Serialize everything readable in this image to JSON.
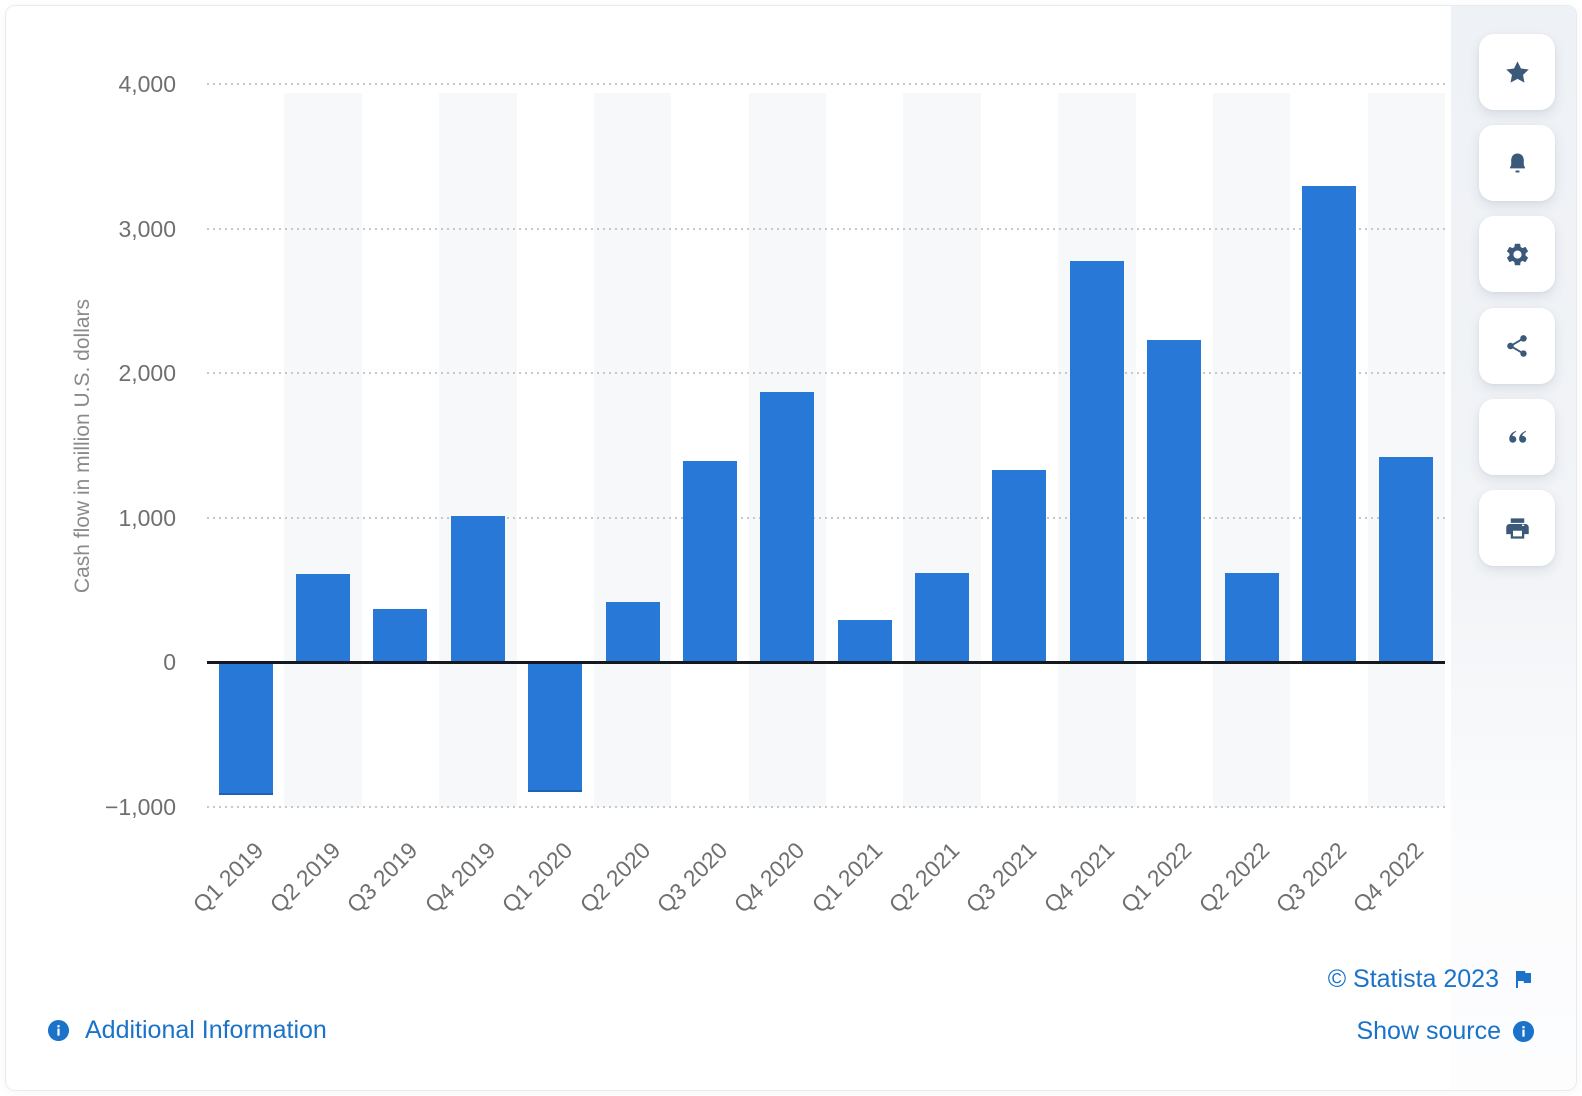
{
  "chart_data": {
    "type": "bar",
    "title": "",
    "categories": [
      "Q1 2019",
      "Q2 2019",
      "Q3 2019",
      "Q4 2019",
      "Q1 2020",
      "Q2 2020",
      "Q3 2020",
      "Q4 2020",
      "Q1 2021",
      "Q2 2021",
      "Q3 2021",
      "Q4 2021",
      "Q1 2022",
      "Q2 2022",
      "Q3 2022",
      "Q4 2022"
    ],
    "values": [
      -920,
      614,
      371,
      1013,
      -895,
      418,
      1395,
      1873,
      293,
      619,
      1328,
      2775,
      2228,
      621,
      3297,
      1420
    ],
    "xlabel": "",
    "ylabel": "Cash flow in million U.S. dollars",
    "ylim": [
      -1000,
      4000
    ],
    "ytick_step": 1000,
    "ytick_labels": [
      "4,000",
      "3,000",
      "2,000",
      "1,000",
      "0",
      "−1,000"
    ],
    "grid": "horizontal-dotted",
    "legend": false,
    "striped_columns": "alternate"
  },
  "toolbar": {
    "buttons": [
      {
        "id": "favorite",
        "icon": "star-icon"
      },
      {
        "id": "notifications",
        "icon": "bell-icon"
      },
      {
        "id": "settings",
        "icon": "gear-icon"
      },
      {
        "id": "share",
        "icon": "share-icon"
      },
      {
        "id": "cite",
        "icon": "quote-icon"
      },
      {
        "id": "print",
        "icon": "printer-icon"
      }
    ]
  },
  "footer": {
    "additional_information": "Additional Information",
    "copyright": "© Statista 2023",
    "show_source": "Show source"
  },
  "colors": {
    "bar": "#2878d8",
    "link": "#1a73c8",
    "icon": "#3b5a7a",
    "stripe": "#f7f8fa",
    "grid_dot": "#c5c7ca",
    "axis_text": "#6f6f6f",
    "axis_title": "#8a8a8a",
    "zero_line": "#14181f",
    "toolbar_strip": "#eff2f5"
  }
}
